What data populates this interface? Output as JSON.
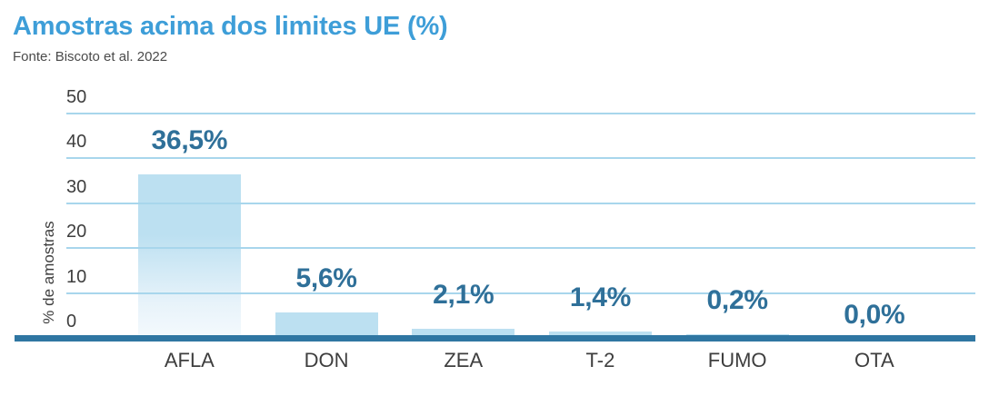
{
  "header": {
    "title": "Amostras acima dos limites UE (%)",
    "source": "Fonte: Biscoto et al. 2022"
  },
  "chart_data": {
    "type": "bar",
    "title": "Amostras acima dos limites UE (%)",
    "subtitle": "Fonte: Biscoto et al. 2022",
    "categories": [
      "AFLA",
      "DON",
      "ZEA",
      "T-2",
      "FUMO",
      "OTA"
    ],
    "values": [
      36.5,
      5.6,
      2.1,
      1.4,
      0.2,
      0.0
    ],
    "value_labels": [
      "36,5%",
      "5,6%",
      "2,1%",
      "1,4%",
      "0,2%",
      "0,0%"
    ],
    "xlabel": "",
    "ylabel": "% de amostras",
    "yticks": [
      0,
      10,
      20,
      30,
      40,
      50
    ],
    "ylim": [
      0,
      50
    ],
    "grid": true,
    "legend": false,
    "colors": {
      "title": "#3e9ed8",
      "subtitle": "#4a4a4a",
      "axis_text": "#3e3e3e",
      "gridline": "#a8d6ec",
      "axis_line": "#2f76a2",
      "bar_fill_top": "#bce0f1",
      "bar_fill_bottom": "#f7fbfe",
      "value_label": "#2f7099"
    }
  }
}
